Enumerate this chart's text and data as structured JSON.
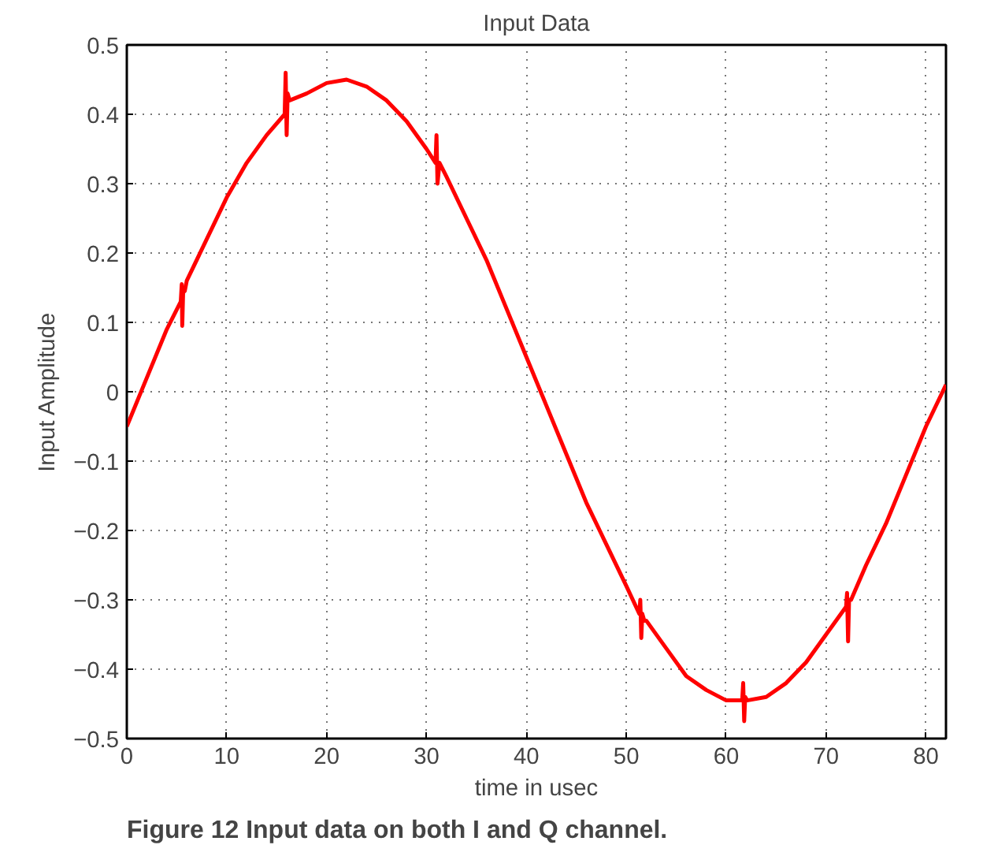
{
  "chart_data": {
    "type": "line",
    "title": "Input Data",
    "xlabel": "time in usec",
    "ylabel": "Input Amplitude",
    "annotations": [
      "Figure 12 Input data on both I and Q channel."
    ],
    "xlim": [
      0,
      82
    ],
    "xticks": [
      0,
      10,
      20,
      30,
      40,
      50,
      60,
      70,
      80
    ],
    "ylim": [
      -0.5,
      0.5
    ],
    "yticks": [
      -0.5,
      -0.4,
      -0.3,
      -0.2,
      -0.1,
      0,
      0.1,
      0.2,
      0.3,
      0.4,
      0.5
    ],
    "grid": true,
    "marker": "none",
    "line_style": "solid",
    "series": [
      {
        "color": "#ff0000",
        "x": [
          0,
          2,
          4,
          5.4,
          5.5,
          5.55,
          5.65,
          5.8,
          6,
          8,
          10,
          12,
          14,
          15.8,
          15.9,
          16.0,
          16.1,
          16.3,
          18,
          20,
          22,
          24,
          26,
          28,
          30,
          30.9,
          31.0,
          31.1,
          31.3,
          32,
          34,
          36,
          38,
          40,
          42,
          44,
          46,
          48,
          50,
          51.3,
          51.4,
          51.5,
          51.6,
          51.8,
          52,
          54,
          56,
          58,
          60,
          61.6,
          61.7,
          61.8,
          61.9,
          62.1,
          64,
          66,
          68,
          70,
          72,
          72.1,
          72.2,
          72.3,
          72.5,
          74,
          76,
          78,
          80,
          82
        ],
        "values": [
          -0.05,
          0.02,
          0.09,
          0.13,
          0.155,
          0.095,
          0.15,
          0.145,
          0.16,
          0.22,
          0.28,
          0.33,
          0.37,
          0.4,
          0.46,
          0.37,
          0.43,
          0.42,
          0.43,
          0.445,
          0.45,
          0.44,
          0.42,
          0.39,
          0.35,
          0.33,
          0.37,
          0.3,
          0.33,
          0.31,
          0.25,
          0.19,
          0.12,
          0.05,
          -0.02,
          -0.09,
          -0.16,
          -0.22,
          -0.28,
          -0.32,
          -0.3,
          -0.355,
          -0.32,
          -0.33,
          -0.33,
          -0.37,
          -0.41,
          -0.43,
          -0.445,
          -0.445,
          -0.42,
          -0.475,
          -0.44,
          -0.445,
          -0.44,
          -0.42,
          -0.39,
          -0.35,
          -0.31,
          -0.29,
          -0.36,
          -0.3,
          -0.3,
          -0.25,
          -0.19,
          -0.12,
          -0.05,
          0.01
        ]
      }
    ]
  }
}
